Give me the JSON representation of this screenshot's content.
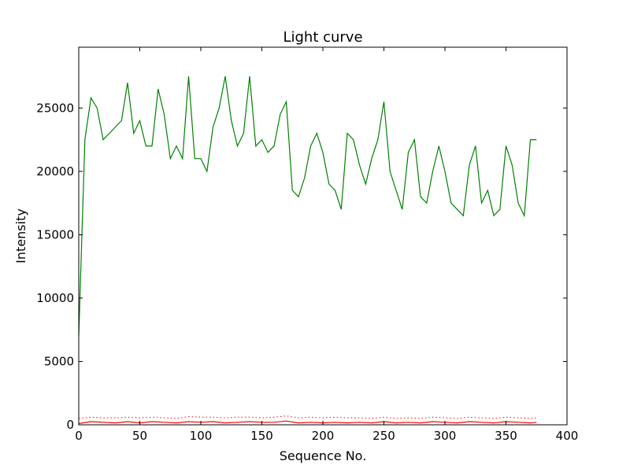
{
  "chart_data": {
    "type": "line",
    "title": "Light curve",
    "xlabel": "Sequence No.",
    "ylabel": "Intensity",
    "xlim": [
      0,
      400
    ],
    "ylim": [
      0,
      29800
    ],
    "x_ticks": [
      0,
      50,
      100,
      150,
      200,
      250,
      300,
      350,
      400
    ],
    "y_ticks": [
      0,
      5000,
      10000,
      15000,
      20000,
      25000
    ],
    "grid": false,
    "legend": "none",
    "colors": {
      "signal": "#008000",
      "background": "#ff0000",
      "error": "#ff0000"
    },
    "series": [
      {
        "style": "solid",
        "color": "#008000",
        "x": [
          0,
          5,
          10,
          15,
          20,
          25,
          30,
          35,
          40,
          45,
          50,
          55,
          60,
          65,
          70,
          75,
          80,
          85,
          90,
          95,
          100,
          105,
          110,
          115,
          120,
          125,
          130,
          135,
          140,
          145,
          150,
          155,
          160,
          165,
          170,
          175,
          180,
          185,
          190,
          195,
          200,
          205,
          210,
          215,
          220,
          225,
          230,
          235,
          240,
          245,
          250,
          255,
          260,
          265,
          270,
          275,
          280,
          285,
          290,
          295,
          300,
          305,
          310,
          315,
          320,
          325,
          330,
          335,
          340,
          345,
          350,
          355,
          360,
          365,
          370,
          375
        ],
        "y": [
          7000,
          22500,
          25800,
          25000,
          22500,
          23000,
          23500,
          24000,
          27000,
          23000,
          24000,
          22000,
          22000,
          26500,
          24500,
          21000,
          22000,
          21000,
          27500,
          21000,
          21000,
          20000,
          23500,
          25000,
          27500,
          24000,
          22000,
          23000,
          27500,
          22000,
          22500,
          21500,
          22000,
          24500,
          25500,
          18500,
          18000,
          19500,
          22000,
          23000,
          21500,
          19000,
          18500,
          17000,
          23000,
          22500,
          20500,
          19000,
          21000,
          22500,
          25500,
          20000,
          18500,
          17000,
          21500,
          22500,
          18000,
          17500,
          20000,
          22000,
          20000,
          17500,
          17000,
          16500,
          20500,
          22000,
          17500,
          18500,
          16500,
          17000,
          22000,
          20500,
          17500,
          16500,
          22500,
          22500
        ]
      },
      {
        "style": "solid",
        "color": "#ff0000",
        "x": [
          0,
          10,
          20,
          30,
          40,
          50,
          60,
          70,
          80,
          90,
          100,
          110,
          120,
          130,
          140,
          150,
          160,
          170,
          180,
          190,
          200,
          210,
          220,
          230,
          240,
          250,
          260,
          270,
          280,
          290,
          300,
          310,
          320,
          330,
          340,
          350,
          360,
          370,
          375
        ],
        "y": [
          100,
          250,
          200,
          150,
          250,
          150,
          250,
          200,
          150,
          250,
          200,
          250,
          150,
          200,
          250,
          200,
          200,
          300,
          150,
          200,
          150,
          200,
          150,
          200,
          150,
          250,
          150,
          200,
          150,
          250,
          200,
          150,
          250,
          200,
          150,
          250,
          200,
          150,
          200
        ]
      },
      {
        "style": "dotted",
        "color": "#ff0000",
        "x": [
          0,
          10,
          20,
          30,
          40,
          50,
          60,
          70,
          80,
          90,
          100,
          110,
          120,
          130,
          140,
          150,
          160,
          170,
          180,
          190,
          200,
          210,
          220,
          230,
          240,
          250,
          260,
          270,
          280,
          290,
          300,
          310,
          320,
          330,
          340,
          350,
          360,
          370,
          375
        ],
        "y": [
          500,
          600,
          550,
          550,
          600,
          550,
          600,
          550,
          500,
          650,
          600,
          600,
          550,
          600,
          600,
          550,
          600,
          700,
          550,
          600,
          550,
          600,
          550,
          550,
          500,
          600,
          500,
          550,
          500,
          600,
          550,
          500,
          600,
          550,
          500,
          600,
          550,
          500,
          550
        ]
      }
    ]
  }
}
